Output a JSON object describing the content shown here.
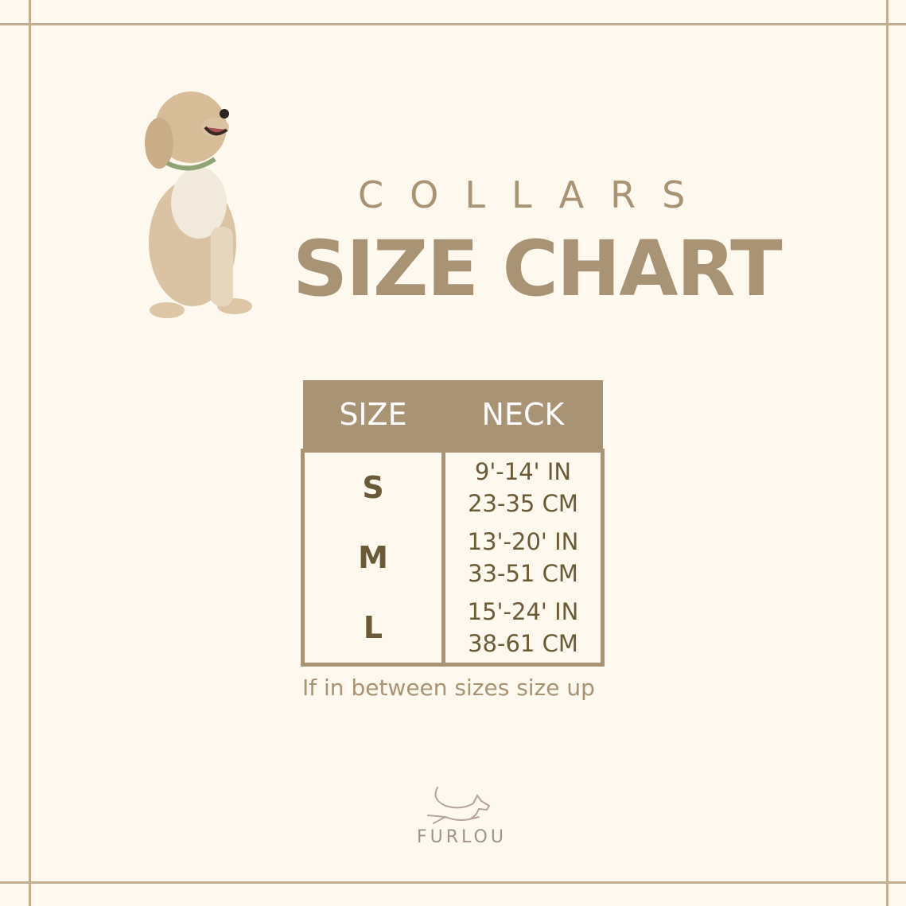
{
  "header": {
    "subtitle": "COLLARS",
    "title": "SIZE CHART"
  },
  "table": {
    "columns": [
      "SIZE",
      "NECK"
    ],
    "rows": [
      {
        "size": "S",
        "inches": "9'-14' IN",
        "cm": "23-35 CM"
      },
      {
        "size": "M",
        "inches": "13'-20' IN",
        "cm": "33-51 CM"
      },
      {
        "size": "L",
        "inches": "15'-24' IN",
        "cm": "38-61 CM"
      }
    ]
  },
  "note": "If in between sizes size up",
  "brand": {
    "name": "FURLOU",
    "icon": "running-dog-logo"
  },
  "colors": {
    "background": "#fdf9ee",
    "accent": "#a89375",
    "text": "#6b5a37"
  }
}
